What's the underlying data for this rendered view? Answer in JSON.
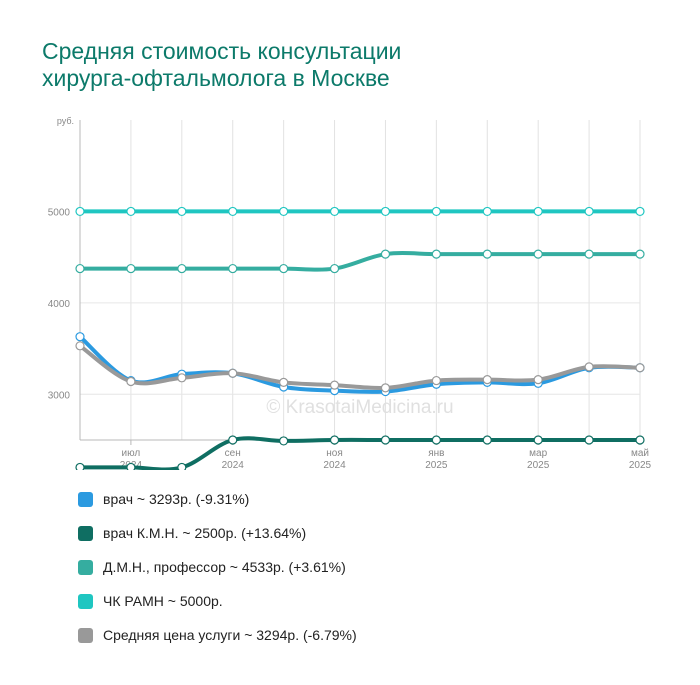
{
  "title_lines": [
    "Средняя стоимость консультации",
    "хирурга-офтальмолога в Москве"
  ],
  "watermark": "© KrasotaiMedicina.ru",
  "chart_data": {
    "type": "line",
    "y_unit": "руб.",
    "ylim": [
      2500,
      6000
    ],
    "yticks": [
      3000,
      4000,
      5000
    ],
    "x": [
      "2024-06",
      "2024-07",
      "2024-08",
      "2024-09",
      "2024-10",
      "2024-11",
      "2024-12",
      "2025-01",
      "2025-02",
      "2025-03",
      "2025-04",
      "2025-05"
    ],
    "x_tick_labels": [
      {
        "x": "2024-07",
        "month": "июл",
        "year": "2024"
      },
      {
        "x": "2024-09",
        "month": "сен",
        "year": "2024"
      },
      {
        "x": "2024-11",
        "month": "ноя",
        "year": "2024"
      },
      {
        "x": "2025-01",
        "month": "янв",
        "year": "2025"
      },
      {
        "x": "2025-03",
        "month": "мар",
        "year": "2025"
      },
      {
        "x": "2025-05",
        "month": "май",
        "year": "2025"
      }
    ],
    "grid": true,
    "legend_position": "bottom",
    "series": [
      {
        "name": "врач ~ 3293р. (-9.31%)",
        "color": "#2b9ae0",
        "values": [
          3630,
          3150,
          3220,
          3230,
          3080,
          3040,
          3030,
          3110,
          3130,
          3120,
          3290,
          3290
        ]
      },
      {
        "name": "врач К.М.Н. ~ 2500р. (+13.64%)",
        "color": "#0f6e62",
        "values": [
          2200,
          2200,
          2200,
          2500,
          2490,
          2500,
          2500,
          2500,
          2500,
          2500,
          2500,
          2500
        ]
      },
      {
        "name": "Д.М.Н., профессор ~ 4533р. (+3.61%)",
        "color": "#35ada0",
        "values": [
          4375,
          4375,
          4375,
          4375,
          4375,
          4375,
          4533,
          4533,
          4533,
          4533,
          4533,
          4533
        ]
      },
      {
        "name": "ЧК РАМН ~ 5000р.",
        "color": "#1fc6c1",
        "values": [
          5000,
          5000,
          5000,
          5000,
          5000,
          5000,
          5000,
          5000,
          5000,
          5000,
          5000,
          5000
        ]
      },
      {
        "name": "Средняя цена услуги ~ 3294р. (-6.79%)",
        "color": "#999999",
        "values": [
          3530,
          3140,
          3180,
          3230,
          3130,
          3100,
          3070,
          3150,
          3160,
          3160,
          3300,
          3290
        ]
      }
    ]
  }
}
